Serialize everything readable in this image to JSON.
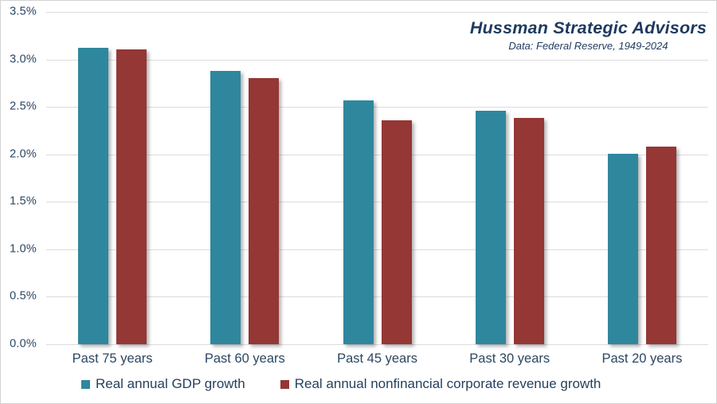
{
  "header": {
    "title": "Hussman Strategic Advisors",
    "subtitle": "Data: Federal Reserve, 1949-2024"
  },
  "chart_data": {
    "type": "bar",
    "categories": [
      "Past 75 years",
      "Past 60 years",
      "Past 45 years",
      "Past 30 years",
      "Past 20 years"
    ],
    "series": [
      {
        "name": "Real annual GDP growth",
        "color": "#2F879E",
        "values": [
          3.12,
          2.88,
          2.57,
          2.46,
          2.01
        ]
      },
      {
        "name": "Real annual nonfinancial corporate revenue growth",
        "color": "#943735",
        "values": [
          3.11,
          2.8,
          2.36,
          2.38,
          2.08
        ]
      }
    ],
    "title": "Hussman Strategic Advisors",
    "subtitle": "Data: Federal Reserve, 1949-2024",
    "xlabel": "",
    "ylabel": "",
    "ylim": [
      0,
      3.5
    ],
    "ytick_step": 0.5,
    "ytick_labels": [
      "0.0%",
      "0.5%",
      "1.0%",
      "1.5%",
      "2.0%",
      "2.5%",
      "3.0%",
      "3.5%"
    ],
    "grid": true,
    "legend_position": "bottom"
  },
  "colors": {
    "gdp_teal": "#2F879E",
    "revenue_red": "#943735",
    "axis_text": "#2B4761",
    "title_text": "#1E3A5F",
    "gridline": "#DCDCDC",
    "frame_border": "#D2D2D2"
  }
}
